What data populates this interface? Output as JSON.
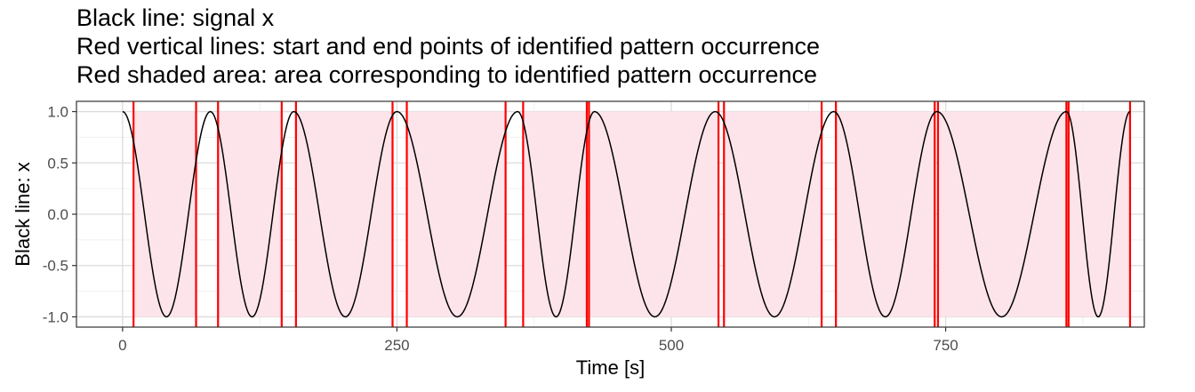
{
  "chart_data": {
    "type": "line",
    "title_lines": [
      "Black line: signal x",
      "Red vertical lines: start and end points of identified pattern occurrence",
      "Red shaded area: area corresponding to identified pattern occurrence"
    ],
    "xlabel": "Time [s]",
    "ylabel": "Black line: x",
    "xlim": [
      -42,
      931
    ],
    "ylim": [
      -1.1,
      1.1
    ],
    "x_ticks": [
      0,
      250,
      500,
      750
    ],
    "y_ticks": [
      -1.0,
      -0.5,
      0.0,
      0.5,
      1.0
    ],
    "x_tick_labels": [
      "0",
      "250",
      "500",
      "750"
    ],
    "y_tick_labels": [
      "-1.0",
      "-0.5",
      "0.0",
      "0.5",
      "1.0"
    ],
    "grid": true,
    "series": [
      {
        "name": "x",
        "color": "#000000",
        "peaks_x": [
          0,
          80,
          156,
          250,
          360,
          430,
          540,
          648,
          742,
          860,
          918
        ],
        "peak_value": 1.0,
        "trough_value": -1.0
      }
    ],
    "pattern_occurrences": [
      {
        "start": 10,
        "end": 67
      },
      {
        "start": 87,
        "end": 145
      },
      {
        "start": 158,
        "end": 246
      },
      {
        "start": 259,
        "end": 349
      },
      {
        "start": 365,
        "end": 423
      },
      {
        "start": 425,
        "end": 543
      },
      {
        "start": 548,
        "end": 637
      },
      {
        "start": 650,
        "end": 740
      },
      {
        "start": 743,
        "end": 860
      },
      {
        "start": 862,
        "end": 918
      }
    ],
    "occurrence_color": "#ff0000",
    "shade_color": "#fde4ea",
    "shade_range": [
      -1.0,
      1.0
    ]
  }
}
